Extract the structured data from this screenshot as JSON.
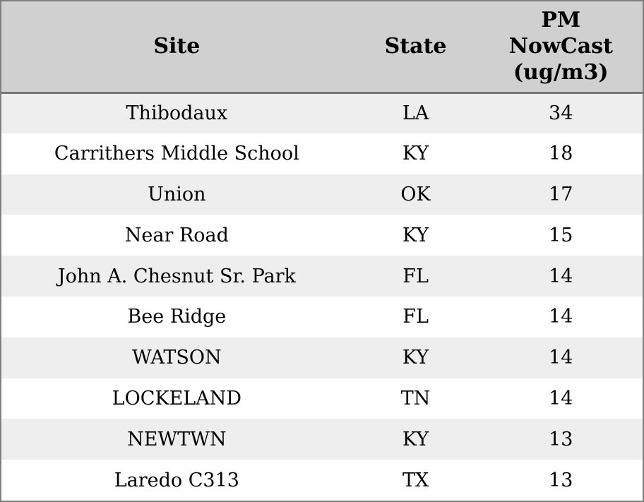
{
  "colors": {
    "header_bg": "#d0d0d0",
    "row_alt_bg": "#eeeeee",
    "row_bg": "#ffffff",
    "border": "#7f7f7f",
    "header_divider": "#757575",
    "text": "#000000"
  },
  "chart_data": {
    "type": "table",
    "columns": [
      "Site",
      "State",
      "PM NowCast (ug/m3)"
    ],
    "pm_header_lines": [
      "PM",
      "NowCast",
      "(ug/m3)"
    ],
    "rows": [
      [
        "Thibodaux",
        "LA",
        34
      ],
      [
        "Carrithers Middle School",
        "KY",
        18
      ],
      [
        "Union",
        "OK",
        17
      ],
      [
        "Near Road",
        "KY",
        15
      ],
      [
        "John A. Chesnut Sr. Park",
        "FL",
        14
      ],
      [
        "Bee Ridge",
        "FL",
        14
      ],
      [
        "WATSON",
        "KY",
        14
      ],
      [
        "LOCKELAND",
        "TN",
        14
      ],
      [
        "NEWTWN",
        "KY",
        13
      ],
      [
        "Laredo C313",
        "TX",
        13
      ]
    ]
  }
}
